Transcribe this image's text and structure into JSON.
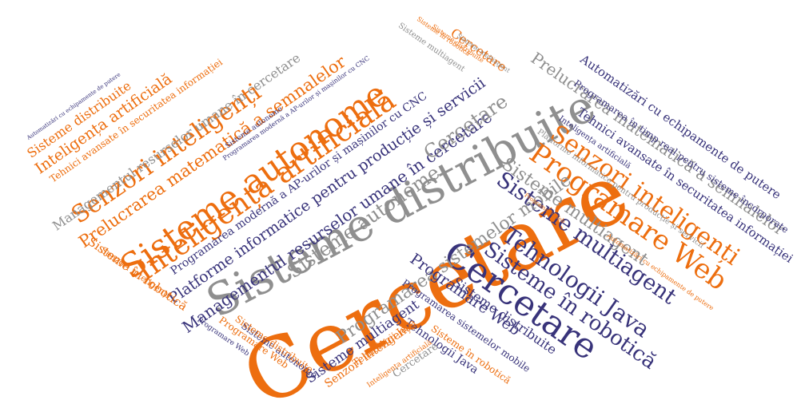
{
  "word_cloud": {
    "colors": {
      "orange": "#ed6e0f",
      "gray": "#8f8f8f",
      "navy": "#38337a"
    },
    "words": [
      {
        "id": "cercetare-main",
        "text": "Cercetare",
        "color": "orange"
      },
      {
        "id": "sisteme-distribuite-main",
        "text": "Sisteme distribuite",
        "color": "gray"
      },
      {
        "id": "cercetare-navy",
        "text": "Cercetare",
        "color": "navy"
      },
      {
        "id": "programare-web-main",
        "text": "Programare Web",
        "color": "orange"
      },
      {
        "id": "senzori-inteligenti-right",
        "text": "Senzori inteligenți",
        "color": "orange"
      },
      {
        "id": "sisteme-multiagent-main",
        "text": "Sisteme multiagent",
        "color": "navy"
      },
      {
        "id": "tehnologii-java-main",
        "text": "Tehnologii Java",
        "color": "navy"
      },
      {
        "id": "sisteme-in-robotica-main",
        "text": "Sisteme în robotică",
        "color": "navy"
      },
      {
        "id": "sisteme-autonome-left",
        "text": "Sisteme autonome",
        "color": "orange"
      },
      {
        "id": "inteligenta-artificiala-left",
        "text": "Inteligența artificială",
        "color": "orange"
      },
      {
        "id": "senzori-inteligenti-left",
        "text": "Senzori inteligenți",
        "color": "orange"
      },
      {
        "id": "prelucrarea-matematica-left",
        "text": "Prelucrarea matematică a semnalelor",
        "color": "orange"
      },
      {
        "id": "inteligenta-artificiala-small",
        "text": "Inteligența artificială",
        "color": "orange"
      },
      {
        "id": "sisteme-distribuite-left",
        "text": "Sisteme distribuite",
        "color": "orange"
      },
      {
        "id": "tehnici-avansate-left",
        "text": "Tehnici avansate în securitatea informației",
        "color": "orange"
      },
      {
        "id": "managementul-resurselor-top",
        "text": "Managementul resurselor umane în cercetare",
        "color": "gray"
      },
      {
        "id": "managementul-resurselor-mid",
        "text": "Managementul resurselor umane în cercetare",
        "color": "navy"
      },
      {
        "id": "platforme-informatice-mid",
        "text": "Platforme informatice pentru producție și servicii",
        "color": "navy"
      },
      {
        "id": "programarea-moderna-mid",
        "text": "Programarea modernă a AP-urilor și mașinilor cu CNC",
        "color": "navy"
      },
      {
        "id": "sisteme-autonome-gray",
        "text": "Sisteme autonome",
        "color": "gray"
      },
      {
        "id": "cercetare-gray",
        "text": "Cercetare",
        "color": "gray"
      },
      {
        "id": "programarea-sistemelor-mobile-gray",
        "text": "Programarea sistemelor mobile",
        "color": "gray"
      },
      {
        "id": "sisteme-multiagent-gray",
        "text": "Sisteme multiagent",
        "color": "gray"
      },
      {
        "id": "prelucrarea-matematica-right",
        "text": "Prelucrarea matematică a semnalelor",
        "color": "gray"
      },
      {
        "id": "automatizari-right",
        "text": "Automatizări cu echipamente de putere",
        "color": "navy"
      },
      {
        "id": "tehnici-avansate-right",
        "text": "Tehnici avansate în securitatea informației",
        "color": "navy"
      },
      {
        "id": "programarea-timp-real-right",
        "text": "Programarea în timp real pentru sisteme încorporate",
        "color": "navy"
      },
      {
        "id": "programare-web-low",
        "text": "Programare Web",
        "color": "navy"
      },
      {
        "id": "sisteme-distribuite-low",
        "text": "Sisteme distribuite",
        "color": "navy"
      },
      {
        "id": "programarea-sistemelor-mobile-low",
        "text": "Programarea sistemelor mobile",
        "color": "navy"
      },
      {
        "id": "sisteme-multiagent-low",
        "text": "Sisteme multiagent",
        "color": "navy"
      },
      {
        "id": "tehnologii-java-low",
        "text": "Tehnologii Java",
        "color": "navy"
      },
      {
        "id": "senzori-inteligenti-low",
        "text": "Senzori inteligenți",
        "color": "orange"
      },
      {
        "id": "cercetare-low",
        "text": "Cercetare",
        "color": "gray"
      },
      {
        "id": "programare-web-bottom",
        "text": "Programare Web",
        "color": "orange"
      },
      {
        "id": "sisteme-autonome-bottom",
        "text": "Sisteme autonome",
        "color": "navy"
      },
      {
        "id": "sisteme-distribuite-bottom",
        "text": "Sisteme distribuite",
        "color": "orange"
      },
      {
        "id": "programare-web-bottom-small",
        "text": "Programare Web",
        "color": "navy"
      },
      {
        "id": "tehnologii-java-bottom",
        "text": "Tehnologii Java",
        "color": "orange"
      },
      {
        "id": "sisteme-in-robotica-bottom",
        "text": "Sisteme în robotică",
        "color": "orange"
      },
      {
        "id": "inteligenta-artificiala-bottom",
        "text": "Inteligența artificială",
        "color": "orange"
      },
      {
        "id": "sisteme-in-robotica-left",
        "text": "Sisteme în robotică",
        "color": "orange"
      },
      {
        "id": "senzori-inteligenti-left-small",
        "text": "Senzori inteligenți",
        "color": "orange"
      },
      {
        "id": "cercetare-top",
        "text": "Cercetare",
        "color": "orange"
      },
      {
        "id": "sisteme-in-robotica-top",
        "text": "Sisteme în robotică",
        "color": "orange"
      },
      {
        "id": "sisteme-multiagent-top",
        "text": "Sisteme multiagent",
        "color": "gray"
      },
      {
        "id": "sisteme-multiagent-top-small",
        "text": "Sisteme multiagent",
        "color": "gray"
      },
      {
        "id": "sisteme-distribuite-top",
        "text": "Sisteme distribuite",
        "color": "orange"
      },
      {
        "id": "programarea-moderna-top",
        "text": "Programarea modernă a AP-urilor și mașinilor cu CNC",
        "color": "navy"
      },
      {
        "id": "sisteme-autonome-top",
        "text": "Sisteme autonome",
        "color": "navy"
      },
      {
        "id": "automatizari-top",
        "text": "Automatizări cu echipamente de putere",
        "color": "navy"
      },
      {
        "id": "automatizari-right-small",
        "text": "Automatizări cu echipamente de putere",
        "color": "orange"
      },
      {
        "id": "platforme-right-small",
        "text": "Platforme informatice pentru producție și servicii",
        "color": "gray"
      },
      {
        "id": "programare-web-right-small",
        "text": "Programare Web",
        "color": "orange"
      },
      {
        "id": "inteligenta-right-small",
        "text": "Inteligența artificială",
        "color": "navy"
      }
    ]
  }
}
